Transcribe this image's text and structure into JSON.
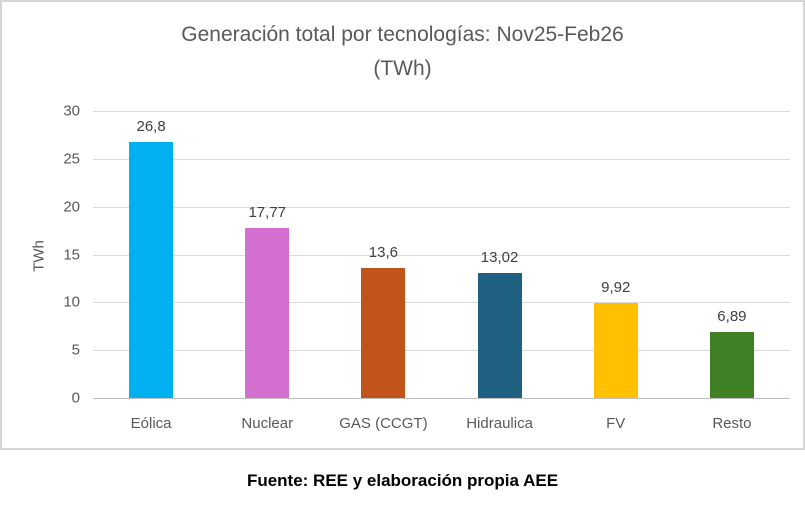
{
  "chart_data": {
    "type": "bar",
    "title": "Generación total por tecnologías: Nov25-Feb26 (TWh)",
    "title_lines": [
      "Generación total por tecnologías: Nov25-Feb26",
      "(TWh)"
    ],
    "xlabel": "",
    "ylabel": "TWh",
    "ylim": [
      0,
      30
    ],
    "yticks": [
      0,
      5,
      10,
      15,
      20,
      25,
      30
    ],
    "grid": true,
    "legend_position": "none",
    "categories": [
      "Eólica",
      "Nuclear",
      "GAS (CCGT)",
      "Hidraulica",
      "FV",
      "Resto"
    ],
    "values": [
      26.8,
      17.77,
      13.6,
      13.02,
      9.92,
      6.89
    ],
    "value_labels": [
      "26,8",
      "17,77",
      "13,6",
      "13,02",
      "9,92",
      "6,89"
    ],
    "bar_colors": [
      "#00B0F0",
      "#D36FCE",
      "#C0541A",
      "#1F5F80",
      "#FFC000",
      "#3F8024"
    ]
  },
  "footer": {
    "source_text": "Fuente: REE y elaboración propia AEE"
  },
  "colors": {
    "title_text": "#595959",
    "axis_text": "#595959",
    "value_label_text": "#404040",
    "gridline": "#DADADA",
    "axis_line": "#BFBFBF",
    "chart_border": "#D6D6D6",
    "background": "#FFFFFF"
  }
}
